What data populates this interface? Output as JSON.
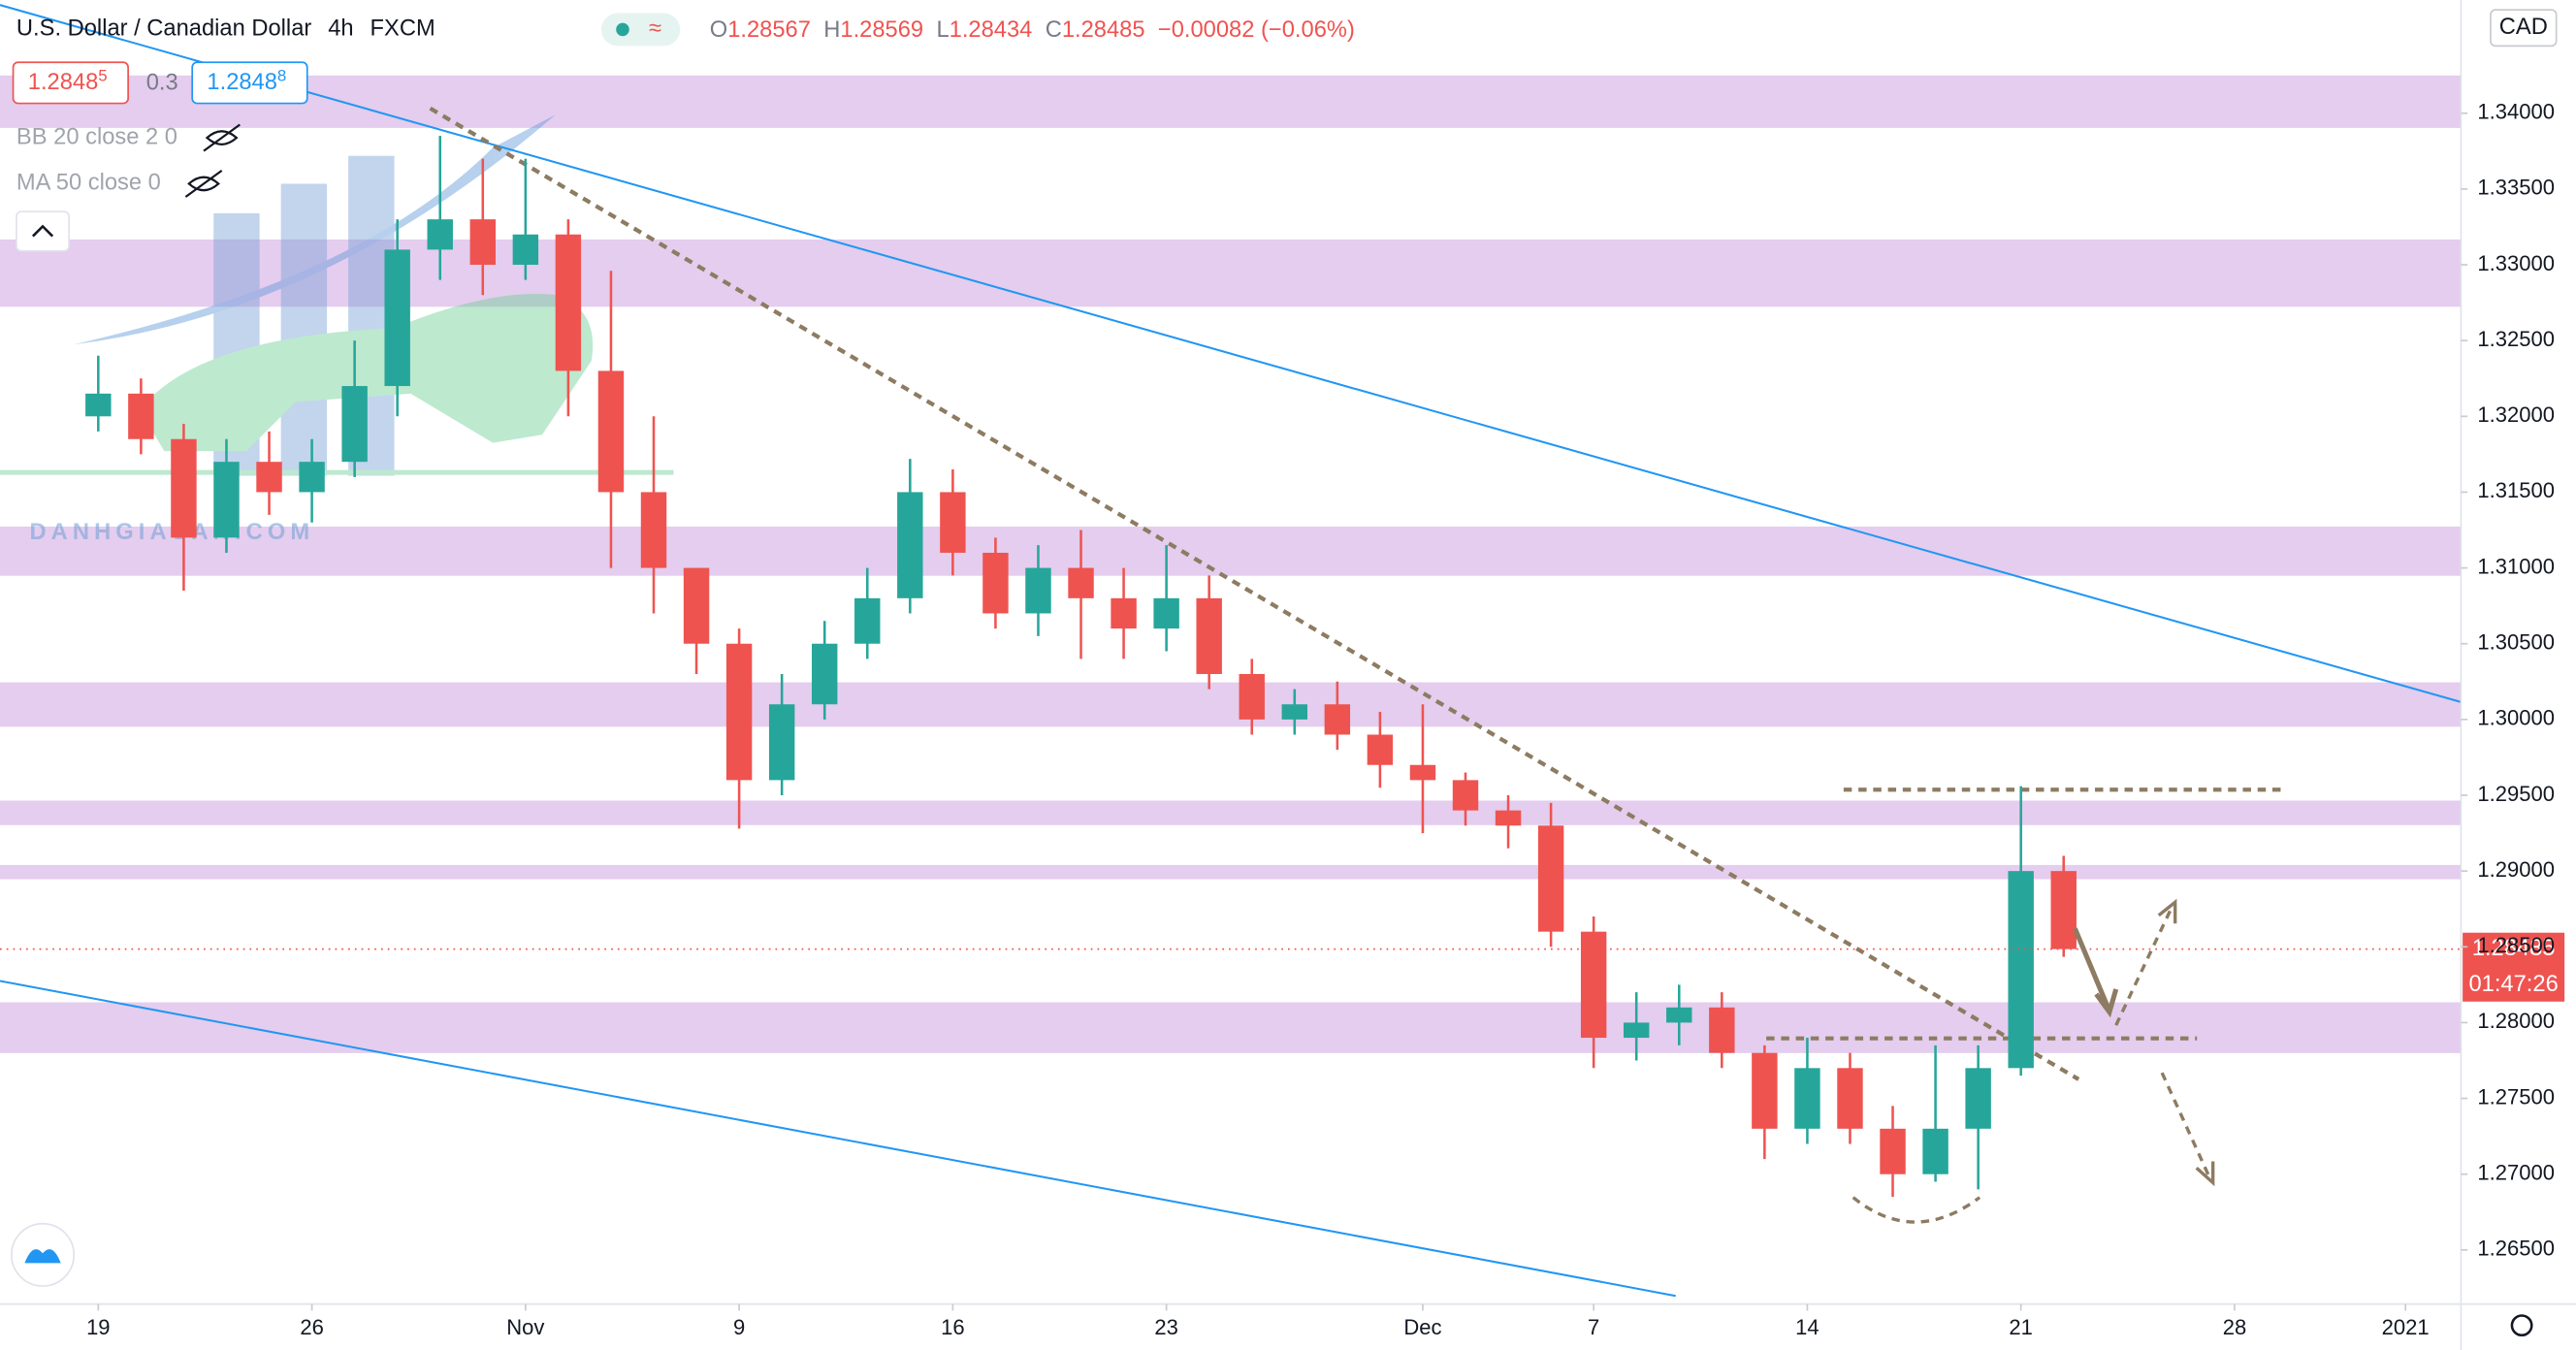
{
  "header": {
    "title": "U.S. Dollar / Canadian Dollar",
    "interval": "4h",
    "source": "FXCM",
    "ohlc": [
      {
        "label": "O",
        "value": 1.28567
      },
      {
        "label": "H",
        "value": 1.28569
      },
      {
        "label": "L",
        "value": 1.28434
      },
      {
        "label": "C",
        "value": 1.28485
      }
    ],
    "change": "−0.00082 (−0.06%)",
    "sell": "1.2848",
    "sell_pip": "5",
    "spread": "0.3",
    "buy": "1.2848",
    "buy_pip": "8",
    "indicators": [
      "BB 20 close 2 0",
      "MA 50 close 0"
    ],
    "currency": "CAD",
    "watermark": "DANHGIASAN.COM",
    "countdown": "01:47:26"
  },
  "chart_data": {
    "type": "candlestick",
    "up_color": "#26a69a",
    "down_color": "#ef5350",
    "xlim": [
      -2.3,
      55.3
    ],
    "ylim": [
      1.26143,
      1.34747
    ],
    "xticks": [
      {
        "value": 0,
        "label": "19"
      },
      {
        "value": 5,
        "label": "26"
      },
      {
        "value": 10,
        "label": "Nov"
      },
      {
        "value": 15,
        "label": "9"
      },
      {
        "value": 20,
        "label": "16"
      },
      {
        "value": 25,
        "label": "23"
      },
      {
        "value": 31,
        "label": "Dec"
      },
      {
        "value": 35,
        "label": "7"
      },
      {
        "value": 40,
        "label": "14"
      },
      {
        "value": 45,
        "label": "21"
      },
      {
        "value": 50,
        "label": "28"
      },
      {
        "value": 54,
        "label": "2021"
      }
    ],
    "yticks": [
      {
        "value": 1.265,
        "label": "1.26500"
      },
      {
        "value": 1.27,
        "label": "1.27000"
      },
      {
        "value": 1.275,
        "label": "1.27500"
      },
      {
        "value": 1.28,
        "label": "1.28000"
      },
      {
        "value": 1.285,
        "label": "1.28500"
      },
      {
        "value": 1.29,
        "label": "1.29000"
      },
      {
        "value": 1.295,
        "label": "1.29500"
      },
      {
        "value": 1.3,
        "label": "1.30000"
      },
      {
        "value": 1.305,
        "label": "1.30500"
      },
      {
        "value": 1.31,
        "label": "1.31000"
      },
      {
        "value": 1.315,
        "label": "1.31500"
      },
      {
        "value": 1.32,
        "label": "1.32000"
      },
      {
        "value": 1.325,
        "label": "1.32500"
      },
      {
        "value": 1.33,
        "label": "1.33000"
      },
      {
        "value": 1.335,
        "label": "1.33500"
      },
      {
        "value": 1.34,
        "label": "1.34000"
      }
    ],
    "candles": {
      "x": [
        0,
        1,
        2,
        3,
        4,
        5,
        6,
        7,
        8,
        9,
        10,
        11,
        12,
        13,
        14,
        15,
        16,
        17,
        18,
        19,
        20,
        21,
        22,
        23,
        24,
        25,
        26,
        27,
        28,
        29,
        30,
        31,
        32,
        33,
        34,
        35,
        36,
        37,
        38,
        39,
        40,
        41,
        42,
        43,
        44,
        45,
        46
      ],
      "open": [
        1.32,
        1.3215,
        1.3185,
        1.312,
        1.317,
        1.315,
        1.317,
        1.322,
        1.331,
        1.333,
        1.33,
        1.332,
        1.323,
        1.315,
        1.31,
        1.305,
        1.296,
        1.301,
        1.305,
        1.308,
        1.315,
        1.311,
        1.307,
        1.31,
        1.308,
        1.306,
        1.308,
        1.303,
        1.3,
        1.301,
        1.299,
        1.297,
        1.296,
        1.294,
        1.293,
        1.286,
        1.279,
        1.28,
        1.281,
        1.278,
        1.273,
        1.277,
        1.273,
        1.27,
        1.273,
        1.277,
        1.29
      ],
      "high": [
        1.324,
        1.3225,
        1.3195,
        1.3185,
        1.319,
        1.3185,
        1.325,
        1.333,
        1.3385,
        1.337,
        1.337,
        1.333,
        1.3296,
        1.32,
        1.31,
        1.306,
        1.303,
        1.3065,
        1.31,
        1.3172,
        1.3165,
        1.312,
        1.3115,
        1.3125,
        1.31,
        1.3115,
        1.3095,
        1.304,
        1.302,
        1.3025,
        1.3005,
        1.301,
        1.2965,
        1.295,
        1.2945,
        1.287,
        1.282,
        1.2825,
        1.282,
        1.2785,
        1.279,
        1.278,
        1.2745,
        1.2785,
        1.2785,
        1.2956,
        1.291
      ],
      "low": [
        1.319,
        1.3175,
        1.3085,
        1.311,
        1.3135,
        1.313,
        1.316,
        1.32,
        1.329,
        1.328,
        1.329,
        1.32,
        1.31,
        1.307,
        1.303,
        1.2928,
        1.295,
        1.3,
        1.304,
        1.307,
        1.3095,
        1.306,
        1.3055,
        1.304,
        1.304,
        1.3045,
        1.302,
        1.299,
        1.299,
        1.298,
        1.2955,
        1.2925,
        1.293,
        1.2915,
        1.285,
        1.277,
        1.2775,
        1.2785,
        1.277,
        1.271,
        1.272,
        1.272,
        1.2685,
        1.2695,
        1.269,
        1.2765,
        1.28434
      ],
      "close": [
        1.3215,
        1.3185,
        1.312,
        1.317,
        1.315,
        1.317,
        1.322,
        1.331,
        1.333,
        1.33,
        1.332,
        1.323,
        1.315,
        1.31,
        1.305,
        1.296,
        1.301,
        1.305,
        1.308,
        1.315,
        1.311,
        1.307,
        1.31,
        1.308,
        1.306,
        1.308,
        1.303,
        1.3,
        1.301,
        1.299,
        1.297,
        1.296,
        1.294,
        1.293,
        1.286,
        1.279,
        1.28,
        1.281,
        1.278,
        1.273,
        1.277,
        1.273,
        1.27,
        1.273,
        1.277,
        1.29,
        1.28485
      ]
    },
    "zones": [
      {
        "from": 1.33903,
        "to": 1.34249
      },
      {
        "from": 1.32723,
        "to": 1.33167
      },
      {
        "from": 1.30948,
        "to": 1.31273
      },
      {
        "from": 1.29952,
        "to": 1.30245
      },
      {
        "from": 1.29303,
        "to": 1.29465
      },
      {
        "from": 1.28946,
        "to": 1.2904
      },
      {
        "from": 1.27799,
        "to": 1.28134
      }
    ],
    "zone_color": "#e4cdee",
    "lines": [
      {
        "x": [
          -2.3,
          55.3
        ],
        "y": [
          1.34714,
          1.30115
        ],
        "color": "#2196f3",
        "dash": false
      },
      {
        "x": [
          -2.3,
          36.92
        ],
        "y": [
          1.28275,
          1.26197
        ],
        "color": "#2196f3",
        "dash": false
      },
      {
        "x": [
          7.77,
          46.35
        ],
        "y": [
          1.34032,
          1.27626
        ],
        "color": "#8d7b62",
        "dash": true
      },
      {
        "x": [
          40.85,
          51.23
        ],
        "y": [
          1.29537,
          1.29537
        ],
        "color": "#8d7b62",
        "dash": true
      },
      {
        "x": [
          39.04,
          49.12
        ],
        "y": [
          1.27896,
          1.27896
        ],
        "color": "#8d7b62",
        "dash": true
      }
    ]
  }
}
